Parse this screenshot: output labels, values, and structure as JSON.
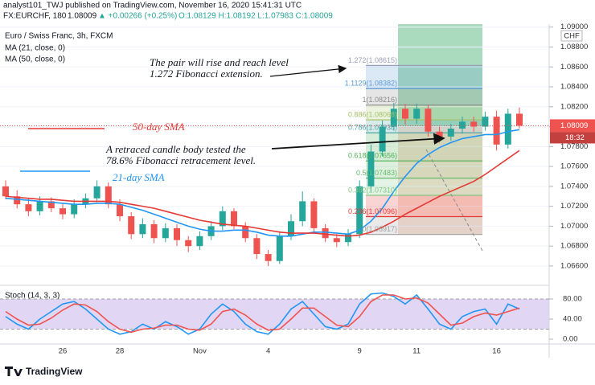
{
  "header": {
    "line1": "analyst101_TWJ published on TradingView.com, November 16, 2020 15:41:31 UTC",
    "symbol": "FX:EURCHF, 180",
    "last": "1.08009",
    "change": "▲ +0.00266 (+0.25%)",
    "ohlc": "O:1.08129 H:1.08192 L:1.07983 C:1.08009"
  },
  "annotations": [
    "The pair will rise and reach level",
    "1.272 Fibonacci extension.",
    "A retraced candle body tested the",
    "78.6% Fibonacci retracement level.",
    "50-day SMA",
    "21-day SMA"
  ],
  "footer": {
    "brand": "TradingView"
  },
  "chart_data": [
    {
      "type": "candlestick",
      "title": "Euro / Swiss Franc, 3h, FXCM",
      "currency": "CHF",
      "categories": [
        null,
        null,
        null,
        null,
        null,
        "26",
        null,
        null,
        null,
        null,
        "28",
        null,
        null,
        null,
        null,
        null,
        null,
        "Nov",
        null,
        null,
        null,
        null,
        null,
        "4",
        null,
        null,
        null,
        null,
        null,
        null,
        null,
        "9",
        null,
        null,
        null,
        null,
        "11",
        null,
        null,
        null,
        null,
        null,
        null,
        "16",
        null,
        null
      ],
      "open": [
        1.074,
        1.073,
        1.0722,
        1.0715,
        1.0725,
        1.0718,
        1.0712,
        1.0722,
        1.0728,
        1.074,
        1.0722,
        1.071,
        1.0692,
        1.0702,
        1.0688,
        1.0698,
        1.0686,
        1.068,
        1.069,
        1.07,
        1.0715,
        1.07,
        1.0688,
        1.0672,
        1.0665,
        1.069,
        1.0705,
        1.0725,
        1.0698,
        1.0688,
        1.0684,
        1.0692,
        1.074,
        1.0775,
        1.08,
        1.0818,
        1.0808,
        1.0818,
        1.0795,
        1.079,
        1.0798,
        1.0805,
        1.08,
        1.081,
        1.0782,
        1.0813
      ],
      "high": [
        1.0746,
        1.0736,
        1.0728,
        1.073,
        1.0729,
        1.0722,
        1.0727,
        1.0733,
        1.0746,
        1.0744,
        1.0727,
        1.0714,
        1.0708,
        1.0706,
        1.0703,
        1.0702,
        1.069,
        1.0695,
        1.0705,
        1.072,
        1.0718,
        1.0704,
        1.0692,
        1.0676,
        1.0695,
        1.0712,
        1.0735,
        1.0728,
        1.0702,
        1.0692,
        1.0697,
        1.0746,
        1.0782,
        1.0806,
        1.0824,
        1.0823,
        1.0823,
        1.0822,
        1.08,
        1.0803,
        1.081,
        1.081,
        1.0815,
        1.0816,
        1.0818,
        1.08192
      ],
      "low": [
        1.0727,
        1.0718,
        1.071,
        1.0711,
        1.0714,
        1.0707,
        1.0708,
        1.0718,
        1.0724,
        1.0718,
        1.0705,
        1.0687,
        1.0688,
        1.0683,
        1.0684,
        1.068,
        1.0674,
        1.0676,
        1.0686,
        1.0696,
        1.0697,
        1.0684,
        1.0667,
        1.066,
        1.0662,
        1.0686,
        1.07,
        1.0693,
        1.0684,
        1.0679,
        1.068,
        1.0688,
        1.0735,
        1.077,
        1.0796,
        1.0802,
        1.0803,
        1.079,
        1.0784,
        1.0786,
        1.0793,
        1.0795,
        1.0796,
        1.0776,
        1.0778,
        1.07983
      ],
      "close": [
        1.073,
        1.0722,
        1.0715,
        1.0725,
        1.0718,
        1.0712,
        1.0722,
        1.0728,
        1.074,
        1.0722,
        1.071,
        1.0692,
        1.0702,
        1.0688,
        1.0698,
        1.0686,
        1.068,
        1.069,
        1.07,
        1.0715,
        1.07,
        1.0688,
        1.0672,
        1.0665,
        1.069,
        1.0705,
        1.0725,
        1.0698,
        1.0688,
        1.0684,
        1.0692,
        1.074,
        1.0775,
        1.08,
        1.0818,
        1.0808,
        1.0818,
        1.0795,
        1.079,
        1.0798,
        1.0805,
        1.08,
        1.081,
        1.0782,
        1.0813,
        1.08009
      ],
      "up_color": "#26a69a",
      "down_color": "#ef5350",
      "series": [
        {
          "name": "MA (21, close, 0)",
          "color": "#2196f3",
          "values": [
            1.0728,
            1.0727,
            1.0726,
            1.0725,
            1.0724,
            1.0723,
            1.0722,
            1.0722,
            1.0723,
            1.0723,
            1.0722,
            1.0719,
            1.0716,
            1.0712,
            1.0708,
            1.0704,
            1.07,
            1.0697,
            1.0695,
            1.0695,
            1.0696,
            1.0696,
            1.0694,
            1.0691,
            1.069,
            1.069,
            1.0692,
            1.0694,
            1.0694,
            1.0693,
            1.0692,
            1.0696,
            1.0705,
            1.0718,
            1.0735,
            1.075,
            1.0763,
            1.0772,
            1.0779,
            1.0784,
            1.0788,
            1.079,
            1.0792,
            1.0792,
            1.0795,
            1.0797
          ]
        },
        {
          "name": "MA (50, close, 0)",
          "color": "#e53935",
          "values": [
            1.073,
            1.0729,
            1.0728,
            1.0727,
            1.0727,
            1.0726,
            1.0725,
            1.0725,
            1.0725,
            1.0725,
            1.0724,
            1.0722,
            1.072,
            1.0718,
            1.0715,
            1.0712,
            1.0709,
            1.0706,
            1.0704,
            1.0702,
            1.0701,
            1.07,
            1.0698,
            1.0696,
            1.0694,
            1.0693,
            1.0693,
            1.0693,
            1.0692,
            1.0691,
            1.069,
            1.0691,
            1.0694,
            1.0699,
            1.0705,
            1.0712,
            1.0718,
            1.0724,
            1.073,
            1.0735,
            1.074,
            1.0745,
            1.0752,
            1.076,
            1.0768,
            1.0776
          ]
        }
      ],
      "ylim": [
        1.0643,
        1.0903
      ],
      "yticks": [
        {
          "value": 1.09,
          "label": "1.09000"
        },
        {
          "value": 1.088,
          "label": "1.08800"
        },
        {
          "value": 1.086,
          "label": "1.08600"
        },
        {
          "value": 1.084,
          "label": "1.08400"
        },
        {
          "value": 1.082,
          "label": "1.08200"
        },
        {
          "value": 1.08,
          "label": "1.08000"
        },
        {
          "value": 1.078,
          "label": "1.07800"
        },
        {
          "value": 1.076,
          "label": "1.07600"
        },
        {
          "value": 1.074,
          "label": "1.07400"
        },
        {
          "value": 1.072,
          "label": "1.07200"
        },
        {
          "value": 1.07,
          "label": "1.07000"
        },
        {
          "value": 1.068,
          "label": "1.06800"
        },
        {
          "value": 1.066,
          "label": "1.06600"
        }
      ],
      "grid": true,
      "last_price": {
        "value": 1.08009,
        "label": "1.08009"
      },
      "countdown": "18:32",
      "fib": [
        {
          "value": 1.08615,
          "label": "1.272(1.08615)",
          "color": "#9aa0b8"
        },
        {
          "value": 1.08382,
          "label": "1.1129(1.08382)",
          "color": "#5b9bd5"
        },
        {
          "value": 1.08216,
          "label": "1(1.08216)",
          "color": "#8a8a8a"
        },
        {
          "value": 1.08068,
          "label": "0.886(1.08068)",
          "color": "#a5c26a"
        },
        {
          "value": 1.07938,
          "label": "0.786(1.07938)",
          "color": "#4fa3a5"
        },
        {
          "value": 1.07656,
          "label": "0.618(1.07656)",
          "color": "#4caf50"
        },
        {
          "value": 1.07483,
          "label": "0.5(1.07483)",
          "color": "#66bb6a"
        },
        {
          "value": 1.0731,
          "label": "0.382(1.07310)",
          "color": "#81c784"
        },
        {
          "value": 1.07096,
          "label": "0.236(1.07096)",
          "color": "#e53935"
        },
        {
          "value": 1.06917,
          "label": "0(1.06917)",
          "color": "#9e9e9e"
        }
      ]
    },
    {
      "type": "stochastic",
      "title": "Stoch (14, 3, 3)",
      "series": [
        {
          "name": "%K",
          "color": "#2196f3",
          "values": [
            45,
            30,
            20,
            40,
            55,
            70,
            75,
            60,
            40,
            20,
            10,
            15,
            30,
            20,
            35,
            25,
            10,
            20,
            50,
            70,
            55,
            30,
            15,
            10,
            30,
            60,
            75,
            50,
            25,
            20,
            30,
            70,
            90,
            92,
            85,
            70,
            88,
            60,
            30,
            20,
            45,
            55,
            60,
            30,
            70,
            60
          ]
        },
        {
          "name": "%D",
          "color": "#ef5350",
          "values": [
            55,
            40,
            28,
            30,
            42,
            58,
            70,
            68,
            55,
            35,
            20,
            14,
            20,
            22,
            28,
            28,
            20,
            18,
            30,
            55,
            60,
            48,
            30,
            18,
            20,
            40,
            62,
            62,
            45,
            28,
            25,
            45,
            75,
            88,
            88,
            80,
            82,
            72,
            50,
            28,
            32,
            45,
            52,
            48,
            55,
            62
          ]
        }
      ],
      "ylim": [
        -28.8,
        102.4
      ],
      "yticks": [
        {
          "value": 80,
          "label": "80.00"
        },
        {
          "value": 40,
          "label": "40.00"
        },
        {
          "value": 0,
          "label": "0.00"
        }
      ],
      "band": [
        20,
        80
      ],
      "band_color": "#d9cdf3"
    }
  ]
}
